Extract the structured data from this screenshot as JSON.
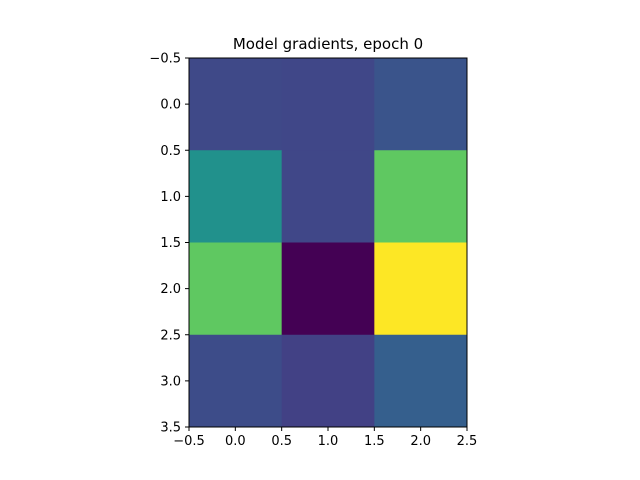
{
  "chart_data": {
    "type": "heatmap",
    "title": "Model gradients, epoch 0",
    "xlabel": "",
    "ylabel": "",
    "colormap": "viridis",
    "xlim": [
      -0.5,
      2.5
    ],
    "ylim": [
      3.5,
      -0.5
    ],
    "y_axis_inverted": true,
    "grid": false,
    "legend": "none",
    "xticks": [
      -0.5,
      0.0,
      0.5,
      1.0,
      1.5,
      2.0,
      2.5
    ],
    "xtick_labels": [
      "−0.5",
      "0.0",
      "0.5",
      "1.0",
      "1.5",
      "2.0",
      "2.5"
    ],
    "yticks": [
      -0.5,
      0.0,
      0.5,
      1.0,
      1.5,
      2.0,
      2.5,
      3.0,
      3.5
    ],
    "ytick_labels": [
      "−0.5",
      "0.0",
      "0.5",
      "1.0",
      "1.5",
      "2.0",
      "2.5",
      "3.0",
      "3.5"
    ],
    "rows": 4,
    "cols": 3,
    "values": [
      [
        0.22,
        0.21,
        0.26
      ],
      [
        0.5,
        0.21,
        0.75
      ],
      [
        0.75,
        0.0,
        1.0
      ],
      [
        0.23,
        0.19,
        0.3
      ]
    ]
  }
}
